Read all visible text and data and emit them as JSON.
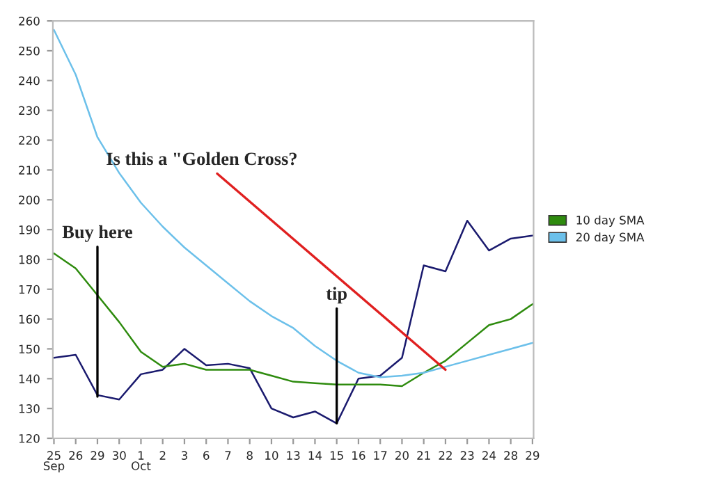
{
  "chart_data": {
    "type": "line",
    "categories": [
      "25\nSep",
      "26",
      "29",
      "30",
      "1\nOct",
      "2",
      "3",
      "6",
      "7",
      "8",
      "10",
      "13",
      "14",
      "15",
      "16",
      "17",
      "20",
      "21",
      "22",
      "23",
      "24",
      "28",
      "29"
    ],
    "series": [
      {
        "color": "#1a1a6e",
        "values": [
          147,
          148,
          134.5,
          133,
          141.5,
          143,
          150,
          144.5,
          145,
          143.5,
          130,
          127,
          129,
          125,
          140,
          141,
          147,
          178,
          176,
          193,
          183,
          187,
          188
        ]
      },
      {
        "name": "10 day SMA",
        "color": "#2e8b0e",
        "values": [
          182,
          177,
          168,
          159,
          149,
          144,
          145,
          143,
          143,
          143,
          141,
          139,
          138.5,
          138,
          138,
          138,
          137.5,
          142,
          146,
          152,
          158,
          160,
          165
        ]
      },
      {
        "name": "20 day SMA",
        "color": "#6cc0ea",
        "values": [
          257,
          242,
          221,
          209,
          199,
          191,
          184,
          178,
          172,
          166,
          161,
          157,
          151,
          146,
          142,
          140.5,
          141,
          142,
          144,
          146,
          148,
          150,
          152
        ]
      }
    ],
    "ylim": [
      120,
      260
    ],
    "yticks": [
      120,
      130,
      140,
      150,
      160,
      170,
      180,
      190,
      200,
      210,
      220,
      230,
      240,
      250,
      260
    ],
    "grid": false,
    "legend": "right",
    "marker": "none",
    "line_style": "solid",
    "annotations": [
      {
        "text": "Buy here",
        "x": "29",
        "y": 134
      },
      {
        "text": "Is this a \"Golden Cross?",
        "x": "22",
        "y": 143
      },
      {
        "text": "tip",
        "x": "15",
        "y": 125
      }
    ]
  }
}
